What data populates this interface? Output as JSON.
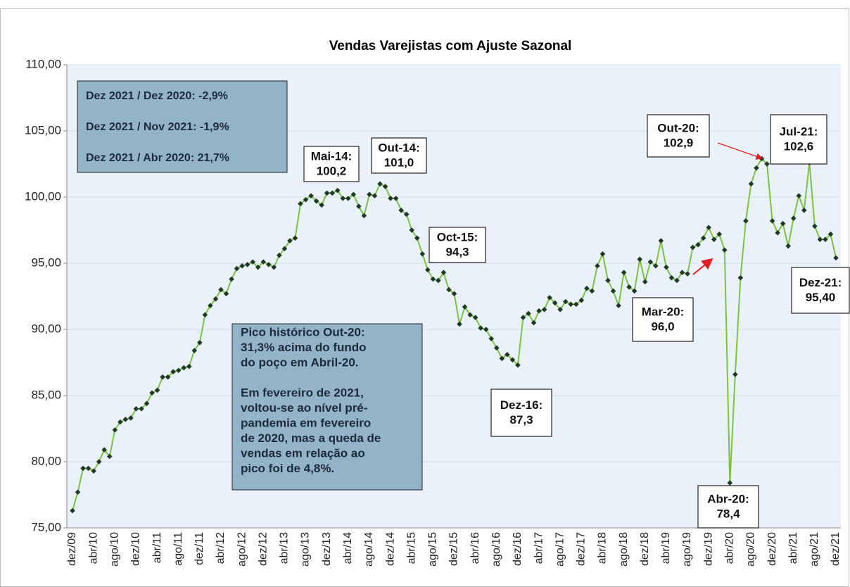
{
  "chart_data": {
    "type": "line",
    "title": "Vendas Varejistas com Ajuste Sazonal",
    "categories": [
      "dez/09",
      null,
      null,
      null,
      "abr/10",
      null,
      null,
      null,
      "ago/10",
      null,
      null,
      null,
      "dez/10",
      null,
      null,
      null,
      "abr/11",
      null,
      null,
      null,
      "ago/11",
      null,
      null,
      null,
      "dez/11",
      null,
      null,
      null,
      "abr/12",
      null,
      null,
      null,
      "ago/12",
      null,
      null,
      null,
      "dez/12",
      null,
      null,
      null,
      "abr/13",
      null,
      null,
      null,
      "ago/13",
      null,
      null,
      null,
      "dez/13",
      null,
      null,
      null,
      "abr/14",
      null,
      null,
      null,
      "ago/14",
      null,
      null,
      null,
      "dez/14",
      null,
      null,
      null,
      "abr/15",
      null,
      null,
      null,
      "ago/15",
      null,
      null,
      null,
      "dez/15",
      null,
      null,
      null,
      "abr/16",
      null,
      null,
      null,
      "ago/16",
      null,
      null,
      null,
      "dez/16",
      null,
      null,
      null,
      "abr/17",
      null,
      null,
      null,
      "ago/17",
      null,
      null,
      null,
      "dez/17",
      null,
      null,
      null,
      "abr/18",
      null,
      null,
      null,
      "ago/18",
      null,
      null,
      null,
      "dez/18",
      null,
      null,
      null,
      "abr/19",
      null,
      null,
      null,
      "ago/19",
      null,
      null,
      null,
      "dez/19",
      null,
      null,
      null,
      "abr/20",
      null,
      null,
      null,
      "ago/20",
      null,
      null,
      null,
      "dez/20",
      null,
      null,
      null,
      "abr/21",
      null,
      null,
      null,
      "ago/21",
      null,
      null,
      null,
      "dez/21"
    ],
    "values": [
      76.3,
      77.7,
      79.5,
      79.5,
      79.3,
      80.0,
      80.9,
      80.4,
      82.4,
      83.0,
      83.2,
      83.3,
      84.0,
      84.0,
      84.4,
      85.2,
      85.4,
      86.4,
      86.4,
      86.8,
      86.9,
      87.1,
      87.2,
      88.4,
      89.0,
      91.1,
      91.8,
      92.3,
      93.0,
      92.7,
      93.8,
      94.6,
      94.8,
      94.9,
      95.1,
      94.7,
      95.1,
      94.9,
      94.7,
      95.6,
      96.1,
      96.7,
      96.9,
      99.5,
      99.8,
      100.1,
      99.7,
      99.4,
      100.3,
      100.3,
      100.5,
      99.9,
      99.9,
      100.2,
      99.3,
      98.6,
      100.2,
      100.1,
      101.0,
      100.8,
      99.9,
      99.9,
      99.0,
      98.7,
      97.5,
      96.9,
      95.7,
      94.5,
      93.8,
      93.7,
      94.3,
      93.0,
      92.7,
      90.4,
      91.7,
      91.1,
      90.9,
      90.1,
      90.0,
      89.3,
      88.6,
      87.8,
      88.1,
      87.7,
      87.3,
      90.9,
      91.2,
      90.5,
      91.4,
      91.5,
      92.4,
      92.0,
      91.5,
      92.1,
      91.9,
      91.9,
      92.2,
      93.1,
      92.9,
      94.8,
      95.7,
      93.7,
      92.9,
      91.8,
      94.3,
      93.2,
      92.9,
      95.3,
      93.6,
      95.1,
      94.8,
      96.7,
      94.7,
      93.9,
      93.7,
      94.3,
      94.2,
      96.2,
      96.4,
      96.9,
      97.7,
      96.8,
      97.2,
      96.0,
      78.4,
      86.6,
      93.9,
      98.2,
      101.0,
      102.2,
      102.9,
      102.5,
      98.2,
      97.3,
      98.0,
      96.3,
      98.4,
      100.1,
      99.0,
      102.6,
      97.8,
      96.8,
      96.8,
      97.2,
      95.4
    ],
    "color": "#7cc242",
    "marker_color": "#1e3a24",
    "ylim": [
      75,
      110
    ],
    "yticks": [
      {
        "value": 75,
        "label": "75,00"
      },
      {
        "value": 80,
        "label": "80,00"
      },
      {
        "value": 85,
        "label": "85,00"
      },
      {
        "value": 90,
        "label": "90,00"
      },
      {
        "value": 95,
        "label": "95,00"
      },
      {
        "value": 100,
        "label": "100,00"
      },
      {
        "value": 105,
        "label": "105,00"
      },
      {
        "value": 110,
        "label": "110,00"
      }
    ],
    "grid": true,
    "annotations": [
      {
        "title": "Mai-14:",
        "value": "100,2"
      },
      {
        "title": "Out-14:",
        "value": "101,0"
      },
      {
        "title": "Oct-15:",
        "value": "94,3"
      },
      {
        "title": "Dez-16:",
        "value": "87,3"
      },
      {
        "title": "Mar-20:",
        "value": "96,0"
      },
      {
        "title": "Abr-20:",
        "value": "78,4"
      },
      {
        "title": "Out-20:",
        "value": "102,9"
      },
      {
        "title": "Jul-21:",
        "value": "102,6"
      },
      {
        "title": "Dez-21:",
        "value": "95,40"
      }
    ],
    "stats_box": [
      "Dez 2021 / Dez 2020: -2,9%",
      "Dez 2021 / Nov 2021: -1,9%",
      "Dez 2021 / Abr 2020: 21,7%"
    ],
    "note_box": [
      [
        "Pico histórico Out-20:",
        "31,3% acima do fundo",
        "do poço em Abril-20."
      ],
      [
        "Em fevereiro de 2021,",
        "voltou-se ao nível pré-",
        "pandemia em fevereiro",
        "de 2020, mas a queda de",
        "vendas em relação ao",
        "pico foi de 4,8%."
      ]
    ]
  }
}
